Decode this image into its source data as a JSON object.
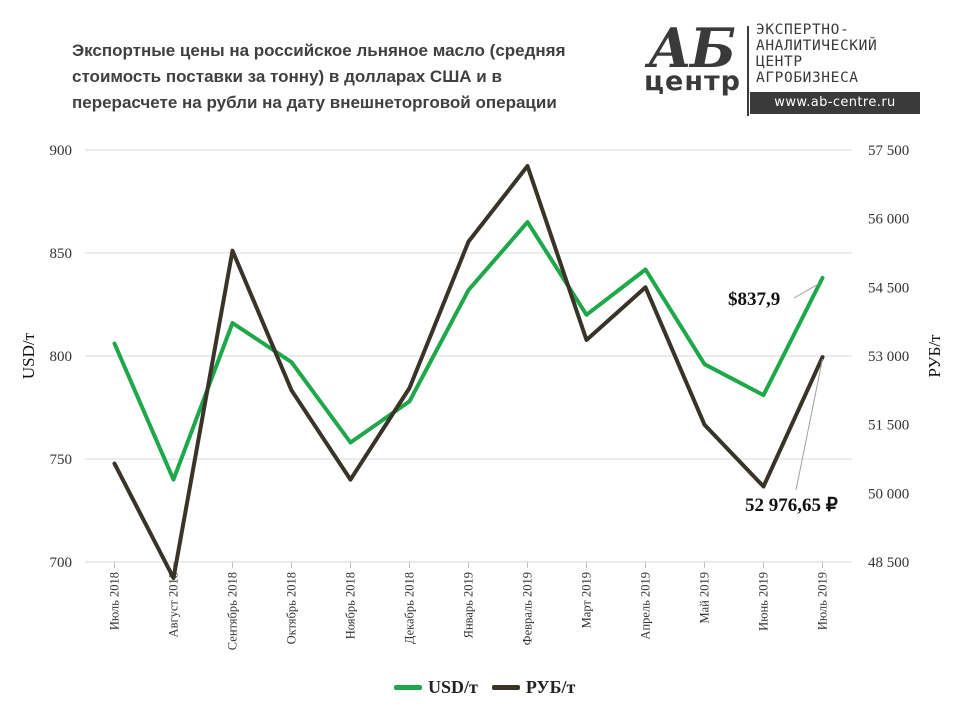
{
  "title": "Экспортные цены на российское льняное масло (средняя\nстоимость поставки за тонну) в долларах США и в\nперерасчете на рубли на дату внешнеторговой  операции",
  "logo": {
    "mark_top": "АБ",
    "mark_bottom": "центр",
    "lines": [
      "ЭКСПЕРТНО-",
      "АНАЛИТИЧЕСКИЙ",
      "ЦЕНТР",
      "АГРОБИЗНЕСА"
    ],
    "url": "www.ab-centre.ru"
  },
  "colors": {
    "usd": "#1fa84a",
    "rub": "#3a3328",
    "grid": "#d9d9d9",
    "logo": "#3a3a3a"
  },
  "chart_data": {
    "type": "line",
    "categories": [
      "Июль 2018",
      "Август 2018",
      "Сентябрь 2018",
      "Октябрь 2018",
      "Ноябрь 2018",
      "Декабрь 2018",
      "Январь 2019",
      "Февраль 2019",
      "Март 2019",
      "Апрель 2019",
      "Май 2019",
      "Июнь 2019",
      "Июль 2019"
    ],
    "series": [
      {
        "name": "USD/т",
        "axis": "left",
        "color": "#1fa84a",
        "values": [
          806,
          740,
          816,
          797,
          758,
          778,
          832,
          865,
          820,
          842,
          796,
          781,
          837.9
        ]
      },
      {
        "name": "РУБ/т",
        "axis": "right",
        "color": "#3a3328",
        "values": [
          50650,
          48150,
          55300,
          52250,
          50300,
          52300,
          55500,
          57150,
          53350,
          54500,
          51500,
          50150,
          52976.65
        ]
      }
    ],
    "ylabel_left": "USD/т",
    "ylabel_right": "РУБ/т",
    "ylim_left": [
      700,
      900
    ],
    "yticks_left": [
      "700",
      "750",
      "800",
      "850",
      "900"
    ],
    "ylim_right": [
      48500,
      57500
    ],
    "yticks_right": [
      "48 500",
      "50 000",
      "51 500",
      "53 000",
      "54 500",
      "56 000",
      "57 500"
    ],
    "grid": true,
    "legend": "bottom",
    "annotations": [
      {
        "series": 0,
        "point": 12,
        "text": "$837,9"
      },
      {
        "series": 1,
        "point": 12,
        "text": "52 976,65 ₽"
      }
    ]
  }
}
